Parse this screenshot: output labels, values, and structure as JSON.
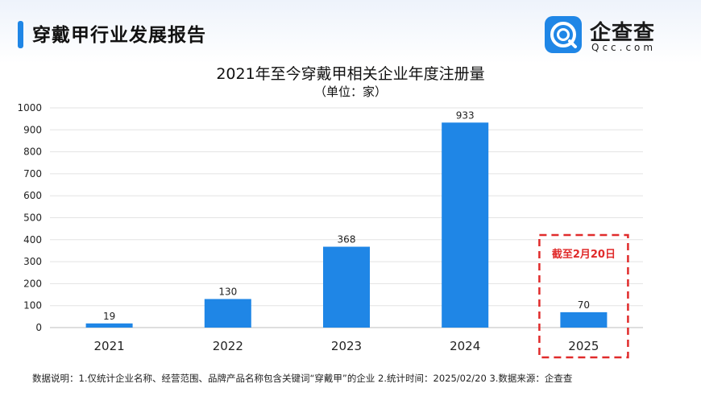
{
  "header": {
    "title": "穿戴甲行业发展报告"
  },
  "logo": {
    "name": "企查查",
    "sub": "Qcc.com",
    "brand_color": "#1f86e6"
  },
  "chart_data": {
    "type": "bar",
    "title": "2021年至今穿戴甲相关企业年度注册量",
    "subtitle": "（单位：家）",
    "categories": [
      "2021",
      "2022",
      "2023",
      "2024",
      "2025"
    ],
    "values": [
      19,
      130,
      368,
      933,
      70
    ],
    "yticks": [
      0,
      100,
      200,
      300,
      400,
      500,
      600,
      700,
      800,
      900,
      1000
    ],
    "ylim": [
      0,
      1000
    ],
    "grid": true,
    "bar_color": "#1f86e6",
    "annotation": {
      "category": "2025",
      "text": "截至2月20日",
      "color": "#e02b2b"
    }
  },
  "footnote": "数据说明：1.仅统计企业名称、经营范围、品牌产品名称包含关键词“穿戴甲”的企业  2.统计时间：2025/02/20  3.数据来源：企查查"
}
